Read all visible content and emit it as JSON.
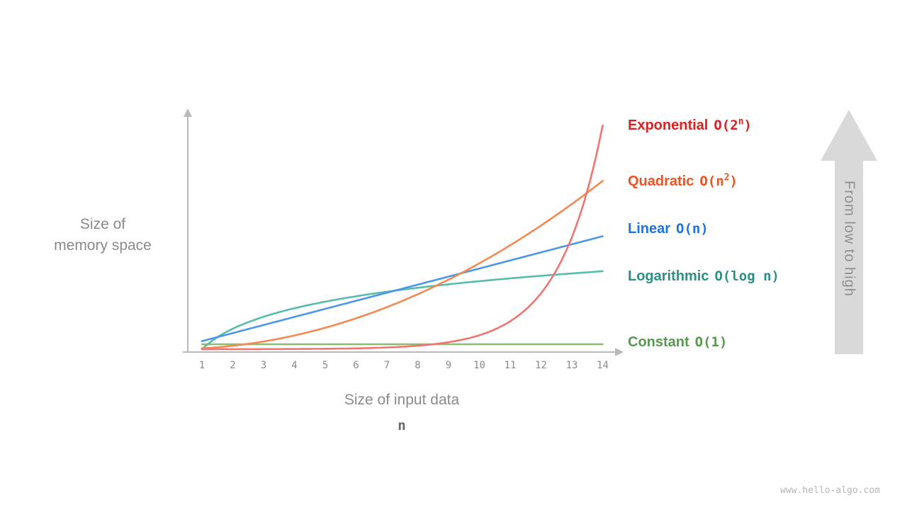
{
  "page": {
    "background": "#ffffff",
    "watermark": "www.hello-algo.com"
  },
  "chart_data": {
    "type": "line",
    "title": "",
    "xlabel": "Size of input data",
    "xlabel_symbol": "n",
    "ylabel": "Size of\nmemory space",
    "grid": false,
    "legend_position": "right",
    "arrow_label": "From low to high",
    "x": [
      1,
      2,
      3,
      4,
      5,
      6,
      7,
      8,
      9,
      10,
      11,
      12,
      13,
      14
    ],
    "x_tick_labels": [
      "1",
      "2",
      "3",
      "4",
      "5",
      "6",
      "7",
      "8",
      "9",
      "10",
      "11",
      "12",
      "13",
      "14"
    ],
    "axis_color": "#b9b9b9",
    "series": [
      {
        "name": "Exponential",
        "formula": "O(2^n)",
        "formula_pre": "O(2",
        "formula_sup": "n",
        "formula_post": ")",
        "label_color": "#e02020",
        "curve_color": "#f3736f",
        "fn": "exp2",
        "peak_fraction": 0.99,
        "values": [
          2,
          4,
          8,
          16,
          32,
          64,
          128,
          256,
          512,
          1024,
          2048,
          4096,
          8192,
          16384
        ]
      },
      {
        "name": "Quadratic",
        "formula": "O(n^2)",
        "formula_pre": "O(n",
        "formula_sup": "2",
        "formula_post": ")",
        "label_color": "#f4511e",
        "curve_color": "#f58853",
        "fn": "pow2",
        "peak_fraction": 0.745,
        "values": [
          1,
          4,
          9,
          16,
          25,
          36,
          49,
          64,
          81,
          100,
          121,
          144,
          169,
          196
        ]
      },
      {
        "name": "Linear",
        "formula": "O(n)",
        "formula_pre": "O(n)",
        "formula_sup": "",
        "formula_post": "",
        "label_color": "#1a73e8",
        "curve_color": "#4b96e8",
        "fn": "linear",
        "peak_fraction": 0.5,
        "values": [
          1,
          2,
          3,
          4,
          5,
          6,
          7,
          8,
          9,
          10,
          11,
          12,
          13,
          14
        ]
      },
      {
        "name": "Logarithmic",
        "formula": "O(log n)",
        "formula_pre": "O(log n)",
        "formula_sup": "",
        "formula_post": "",
        "label_color": "#2b9084",
        "curve_color": "#58bcab",
        "fn": "log2",
        "peak_fraction": 0.345,
        "values": [
          0,
          1,
          1.58,
          2,
          2.32,
          2.58,
          2.81,
          3,
          3.17,
          3.32,
          3.46,
          3.58,
          3.7,
          3.81
        ]
      },
      {
        "name": "Constant",
        "formula": "O(1)",
        "formula_pre": "O(1)",
        "formula_sup": "",
        "formula_post": "",
        "label_color": "#56994f",
        "curve_color": "#8cbb72",
        "fn": "const1",
        "peak_fraction": 0.022,
        "values": [
          1,
          1,
          1,
          1,
          1,
          1,
          1,
          1,
          1,
          1,
          1,
          1,
          1,
          1
        ]
      }
    ]
  }
}
